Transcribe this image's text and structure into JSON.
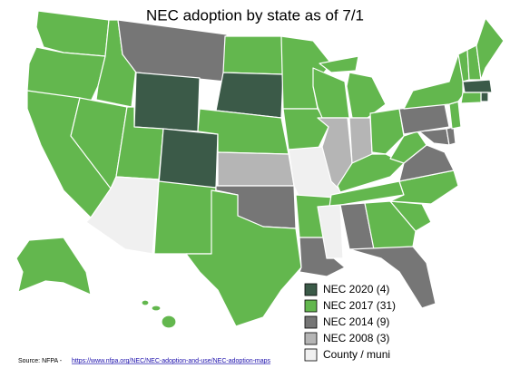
{
  "title": "NEC adoption by state as of 7/1",
  "legend": [
    {
      "label": "NEC 2020 (4)",
      "color": "#3b5a48"
    },
    {
      "label": "NEC 2017 (31)",
      "color": "#63b74e"
    },
    {
      "label": "NEC 2014 (9)",
      "color": "#767676"
    },
    {
      "label": "NEC 2008 (3)",
      "color": "#b5b5b5"
    },
    {
      "label": "County / muni",
      "color": "#f0f0f0"
    }
  ],
  "source": {
    "prefix": "Source: NFPA - ",
    "link": "https://www.nfpa.org/NEC/NEC-adoption-and-use/NEC-adoption-maps"
  }
}
